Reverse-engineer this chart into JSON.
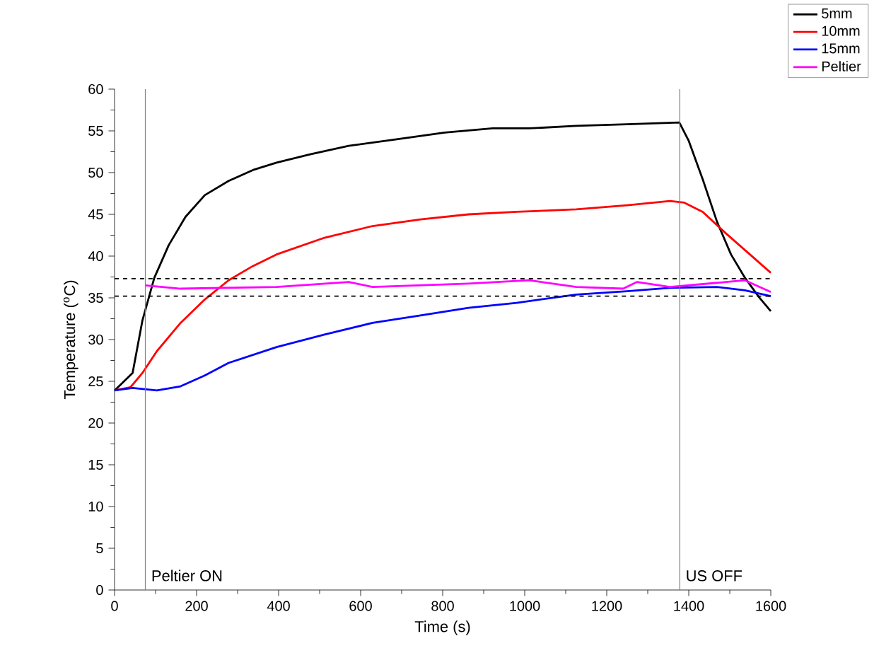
{
  "chart_data": {
    "type": "line",
    "xlabel": "Time (s)",
    "ylabel": "Temperature ($^{o}$C)",
    "xlim": [
      0,
      1600
    ],
    "ylim": [
      0,
      60
    ],
    "xticks": [
      0,
      200,
      400,
      600,
      800,
      1000,
      1200,
      1400,
      1600
    ],
    "yticks": [
      0,
      5,
      10,
      15,
      20,
      25,
      30,
      35,
      40,
      45,
      50,
      55,
      60
    ],
    "grid": false,
    "legend": "top right",
    "marker": "none",
    "line_style": "solid",
    "series": [
      {
        "name": "5mm",
        "color": "#000000",
        "x": [
          0,
          44,
          68,
          97,
          132,
          173,
          220,
          278,
          337,
          395,
          477,
          571,
          688,
          805,
          922,
          1011,
          1126,
          1250,
          1377,
          1400,
          1434,
          1469,
          1503,
          1537,
          1571,
          1600
        ],
        "values": [
          23.9,
          26,
          32.3,
          37.4,
          41.3,
          44.7,
          47.3,
          49,
          50.3,
          51.2,
          52.2,
          53.2,
          54,
          54.8,
          55.3,
          55.3,
          55.6,
          55.8,
          56.0,
          53.8,
          49.2,
          44.1,
          40.2,
          37.4,
          35.1,
          33.4
        ]
      },
      {
        "name": "10mm",
        "color": "#ff0000",
        "x": [
          0,
          39,
          68,
          103,
          161,
          220,
          278,
          337,
          395,
          512,
          629,
          746,
          863,
          980,
          1126,
          1250,
          1354,
          1389,
          1434,
          1491,
          1549,
          1600
        ],
        "values": [
          23.9,
          24.3,
          26,
          28.6,
          32,
          34.8,
          37.1,
          38.8,
          40.2,
          42.2,
          43.6,
          44.4,
          45,
          45.3,
          45.6,
          46.1,
          46.6,
          46.4,
          45.3,
          42.7,
          40.2,
          38.0
        ]
      },
      {
        "name": "15mm",
        "color": "#0000ff",
        "x": [
          0,
          44,
          103,
          161,
          220,
          278,
          395,
          512,
          629,
          746,
          863,
          980,
          1126,
          1250,
          1354,
          1469,
          1537,
          1600
        ],
        "values": [
          23.9,
          24.2,
          23.9,
          24.4,
          25.7,
          27.2,
          29.1,
          30.6,
          32,
          32.9,
          33.8,
          34.4,
          35.4,
          35.8,
          36.2,
          36.3,
          35.9,
          35.2
        ]
      },
      {
        "name": "Peltier",
        "color": "#ff00ff",
        "x": [
          75,
          161,
          278,
          395,
          571,
          629,
          746,
          863,
          1011,
          1126,
          1240,
          1274,
          1354,
          1469,
          1537,
          1600
        ],
        "values": [
          36.5,
          36.1,
          36.2,
          36.3,
          36.9,
          36.3,
          36.5,
          36.7,
          37.1,
          36.3,
          36.1,
          36.9,
          36.3,
          36.8,
          37.1,
          35.7
        ]
      }
    ],
    "ref_lines": [
      {
        "axis": "x",
        "value": 75,
        "label": "Peltier ON",
        "color": "#808080",
        "line_style": "solid"
      },
      {
        "axis": "x",
        "value": 1378,
        "label": "US OFF",
        "color": "#808080",
        "line_style": "solid"
      },
      {
        "axis": "y",
        "value": 37.3,
        "color": "#000000",
        "line_style": "dashed"
      },
      {
        "axis": "y",
        "value": 35.2,
        "color": "#000000",
        "line_style": "dashed"
      }
    ]
  }
}
